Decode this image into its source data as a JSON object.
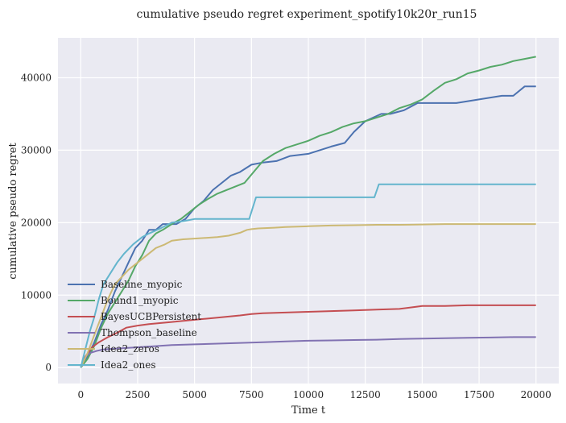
{
  "chart_data": {
    "type": "line",
    "title": "cumulative pseudo regret experiment_spotify10k20r_run15",
    "xlabel": "Time t",
    "ylabel": "cumulative pseudo regret",
    "xlim": [
      -1000,
      21000
    ],
    "ylim": [
      -2200,
      45500
    ],
    "xticks": [
      0,
      2500,
      5000,
      7500,
      10000,
      12500,
      15000,
      17500,
      20000
    ],
    "yticks": [
      0,
      10000,
      20000,
      30000,
      40000
    ],
    "grid": true,
    "legend_position": "lower-left",
    "colors": {
      "background": "#eaeaf2",
      "grid": "#ffffff"
    },
    "series": [
      {
        "name": "Baseline_myopic",
        "color": "#4c72b0",
        "x": [
          0,
          300,
          600,
          900,
          1200,
          1500,
          1800,
          2100,
          2400,
          2700,
          3000,
          3300,
          3600,
          4200,
          4600,
          5000,
          5400,
          5800,
          6200,
          6600,
          7000,
          7500,
          8000,
          8600,
          9200,
          10000,
          11000,
          11600,
          12000,
          12500,
          13200,
          13600,
          14200,
          14800,
          15500,
          16500,
          17500,
          18500,
          19000,
          19500,
          20000
        ],
        "y": [
          0,
          1500,
          3500,
          6000,
          8000,
          10500,
          12500,
          14500,
          16500,
          17500,
          19000,
          19000,
          19800,
          19800,
          20500,
          22000,
          23000,
          24500,
          25500,
          26500,
          27000,
          28000,
          28300,
          28500,
          29200,
          29500,
          30500,
          31000,
          32500,
          34000,
          35000,
          35000,
          35500,
          36500,
          36500,
          36500,
          37000,
          37500,
          37500,
          38800,
          38800
        ]
      },
      {
        "name": "Bound1_myopic",
        "color": "#55a868",
        "x": [
          0,
          300,
          600,
          900,
          1200,
          1500,
          1800,
          2100,
          2400,
          2700,
          3000,
          3300,
          3600,
          4000,
          4400,
          4800,
          5200,
          5600,
          6000,
          6400,
          6800,
          7200,
          7600,
          8000,
          8500,
          9000,
          9500,
          10000,
          10500,
          11000,
          11500,
          12000,
          12500,
          13000,
          13500,
          14000,
          14500,
          15000,
          15500,
          16000,
          16500,
          17000,
          17500,
          18000,
          18500,
          19000,
          19500,
          20000
        ],
        "y": [
          0,
          1200,
          3000,
          5500,
          7500,
          9000,
          10500,
          12000,
          14000,
          15500,
          17500,
          18500,
          19000,
          19800,
          20500,
          21500,
          22500,
          23300,
          24000,
          24500,
          25000,
          25500,
          27000,
          28500,
          29500,
          30300,
          30800,
          31300,
          32000,
          32500,
          33200,
          33700,
          34000,
          34500,
          35000,
          35800,
          36300,
          37000,
          38200,
          39300,
          39800,
          40600,
          41000,
          41500,
          41800,
          42300,
          42600,
          42900
        ]
      },
      {
        "name": "BayesUCBPersistent",
        "color": "#c44e52",
        "x": [
          0,
          200,
          500,
          800,
          1200,
          1600,
          2000,
          2500,
          3000,
          4000,
          5000,
          6000,
          7000,
          7500,
          8000,
          9000,
          10000,
          11000,
          12000,
          13000,
          14000,
          15000,
          16000,
          17000,
          18000,
          19000,
          20000
        ],
        "y": [
          0,
          1500,
          2800,
          3500,
          4200,
          4800,
          5500,
          5800,
          6000,
          6300,
          6600,
          6900,
          7200,
          7400,
          7500,
          7600,
          7700,
          7800,
          7900,
          8000,
          8100,
          8500,
          8500,
          8600,
          8600,
          8600,
          8600
        ]
      },
      {
        "name": "Thompson_baseline",
        "color": "#8172b2",
        "x": [
          0,
          200,
          400,
          700,
          1000,
          1500,
          2000,
          2500,
          3000,
          4000,
          5000,
          6000,
          7000,
          8000,
          9000,
          10000,
          11000,
          12000,
          13000,
          14000,
          15000,
          16000,
          17000,
          18000,
          19000,
          20000
        ],
        "y": [
          0,
          1500,
          2000,
          2300,
          2500,
          2600,
          2700,
          2800,
          2900,
          3100,
          3200,
          3300,
          3400,
          3500,
          3600,
          3700,
          3750,
          3800,
          3850,
          3950,
          4000,
          4050,
          4100,
          4150,
          4200,
          4200
        ]
      },
      {
        "name": "Idea2_zeros",
        "color": "#ccb974",
        "x": [
          0,
          300,
          600,
          900,
          1200,
          1500,
          1800,
          2100,
          2500,
          2900,
          3300,
          3700,
          4000,
          4500,
          5000,
          5500,
          6000,
          6500,
          7000,
          7300,
          7500,
          7800,
          8500,
          9000,
          10000,
          11000,
          12000,
          13000,
          14000,
          15000,
          16000,
          17000,
          18000,
          19000,
          20000
        ],
        "y": [
          0,
          2000,
          4500,
          7000,
          9500,
          11500,
          12500,
          13500,
          14500,
          15500,
          16500,
          17000,
          17500,
          17700,
          17800,
          17900,
          18000,
          18200,
          18600,
          19000,
          19100,
          19200,
          19300,
          19400,
          19500,
          19600,
          19650,
          19700,
          19700,
          19750,
          19800,
          19800,
          19800,
          19800,
          19800
        ]
      },
      {
        "name": "Idea2_ones",
        "color": "#64b5cd",
        "x": [
          0,
          200,
          400,
          600,
          800,
          1000,
          1300,
          1600,
          1900,
          2300,
          2700,
          3000,
          3500,
          4000,
          4500,
          5000,
          5500,
          6000,
          6500,
          7000,
          7400,
          7700,
          8500,
          10000,
          11000,
          12000,
          12900,
          13100,
          14000,
          15000,
          16000,
          17000,
          18000,
          19000,
          20000
        ],
        "y": [
          0,
          2500,
          5000,
          7000,
          9500,
          11500,
          13000,
          14500,
          15700,
          17000,
          18000,
          18500,
          19200,
          20000,
          20200,
          20500,
          20500,
          20500,
          20500,
          20500,
          20500,
          23500,
          23500,
          23500,
          23500,
          23500,
          23500,
          25300,
          25300,
          25300,
          25300,
          25300,
          25300,
          25300,
          25300
        ]
      }
    ]
  }
}
